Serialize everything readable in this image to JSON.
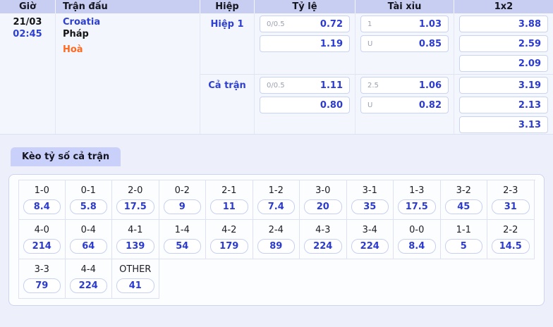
{
  "table": {
    "headers": [
      "Giờ",
      "Trận đấu",
      "Hiệp",
      "Tỷ lệ",
      "Tài xỉu",
      "1x2"
    ]
  },
  "match": {
    "date": "21/03",
    "time": "02:45",
    "home": "Croatia",
    "away": "Pháp",
    "draw": "Hoà"
  },
  "sections": [
    {
      "label": "Hiệp 1",
      "ty_le": [
        {
          "hdp": "0/0.5",
          "odds": "0.72"
        },
        {
          "hdp": "",
          "odds": "1.19"
        }
      ],
      "tai_xiu": [
        {
          "hdp": "1",
          "odds": "1.03"
        },
        {
          "hdp": "U",
          "odds": "0.85"
        }
      ],
      "x12": [
        "3.88",
        "2.59",
        "2.09"
      ]
    },
    {
      "label": "Cả trận",
      "ty_le": [
        {
          "hdp": "0/0.5",
          "odds": "1.11"
        },
        {
          "hdp": "",
          "odds": "0.80"
        }
      ],
      "tai_xiu": [
        {
          "hdp": "2.5",
          "odds": "1.06"
        },
        {
          "hdp": "U",
          "odds": "0.82"
        }
      ],
      "x12": [
        "3.19",
        "2.13",
        "3.13"
      ]
    }
  ],
  "score_market": {
    "title": "Kèo tỷ số cả trận",
    "rows": [
      [
        {
          "score": "1-0",
          "odds": "8.4"
        },
        {
          "score": "0-1",
          "odds": "5.8"
        },
        {
          "score": "2-0",
          "odds": "17.5"
        },
        {
          "score": "0-2",
          "odds": "9"
        },
        {
          "score": "2-1",
          "odds": "11"
        },
        {
          "score": "1-2",
          "odds": "7.4"
        },
        {
          "score": "3-0",
          "odds": "20"
        },
        {
          "score": "3-1",
          "odds": "35"
        },
        {
          "score": "1-3",
          "odds": "17.5"
        },
        {
          "score": "3-2",
          "odds": "45"
        },
        {
          "score": "2-3",
          "odds": "31"
        }
      ],
      [
        {
          "score": "4-0",
          "odds": "214"
        },
        {
          "score": "0-4",
          "odds": "64"
        },
        {
          "score": "4-1",
          "odds": "139"
        },
        {
          "score": "1-4",
          "odds": "54"
        },
        {
          "score": "4-2",
          "odds": "179"
        },
        {
          "score": "2-4",
          "odds": "89"
        },
        {
          "score": "4-3",
          "odds": "224"
        },
        {
          "score": "3-4",
          "odds": "224"
        },
        {
          "score": "0-0",
          "odds": "8.4"
        },
        {
          "score": "1-1",
          "odds": "5"
        },
        {
          "score": "2-2",
          "odds": "14.5"
        }
      ],
      [
        {
          "score": "3-3",
          "odds": "79"
        },
        {
          "score": "4-4",
          "odds": "224"
        },
        {
          "score": "OTHER",
          "odds": "41"
        }
      ]
    ]
  },
  "colors": {
    "accent_blue": "#2b3bd1",
    "link_blue": "#2e40cf",
    "draw_orange": "#ff6a1f",
    "header_bg": "#c8cef2",
    "tab_bg": "#c9d0fa"
  }
}
